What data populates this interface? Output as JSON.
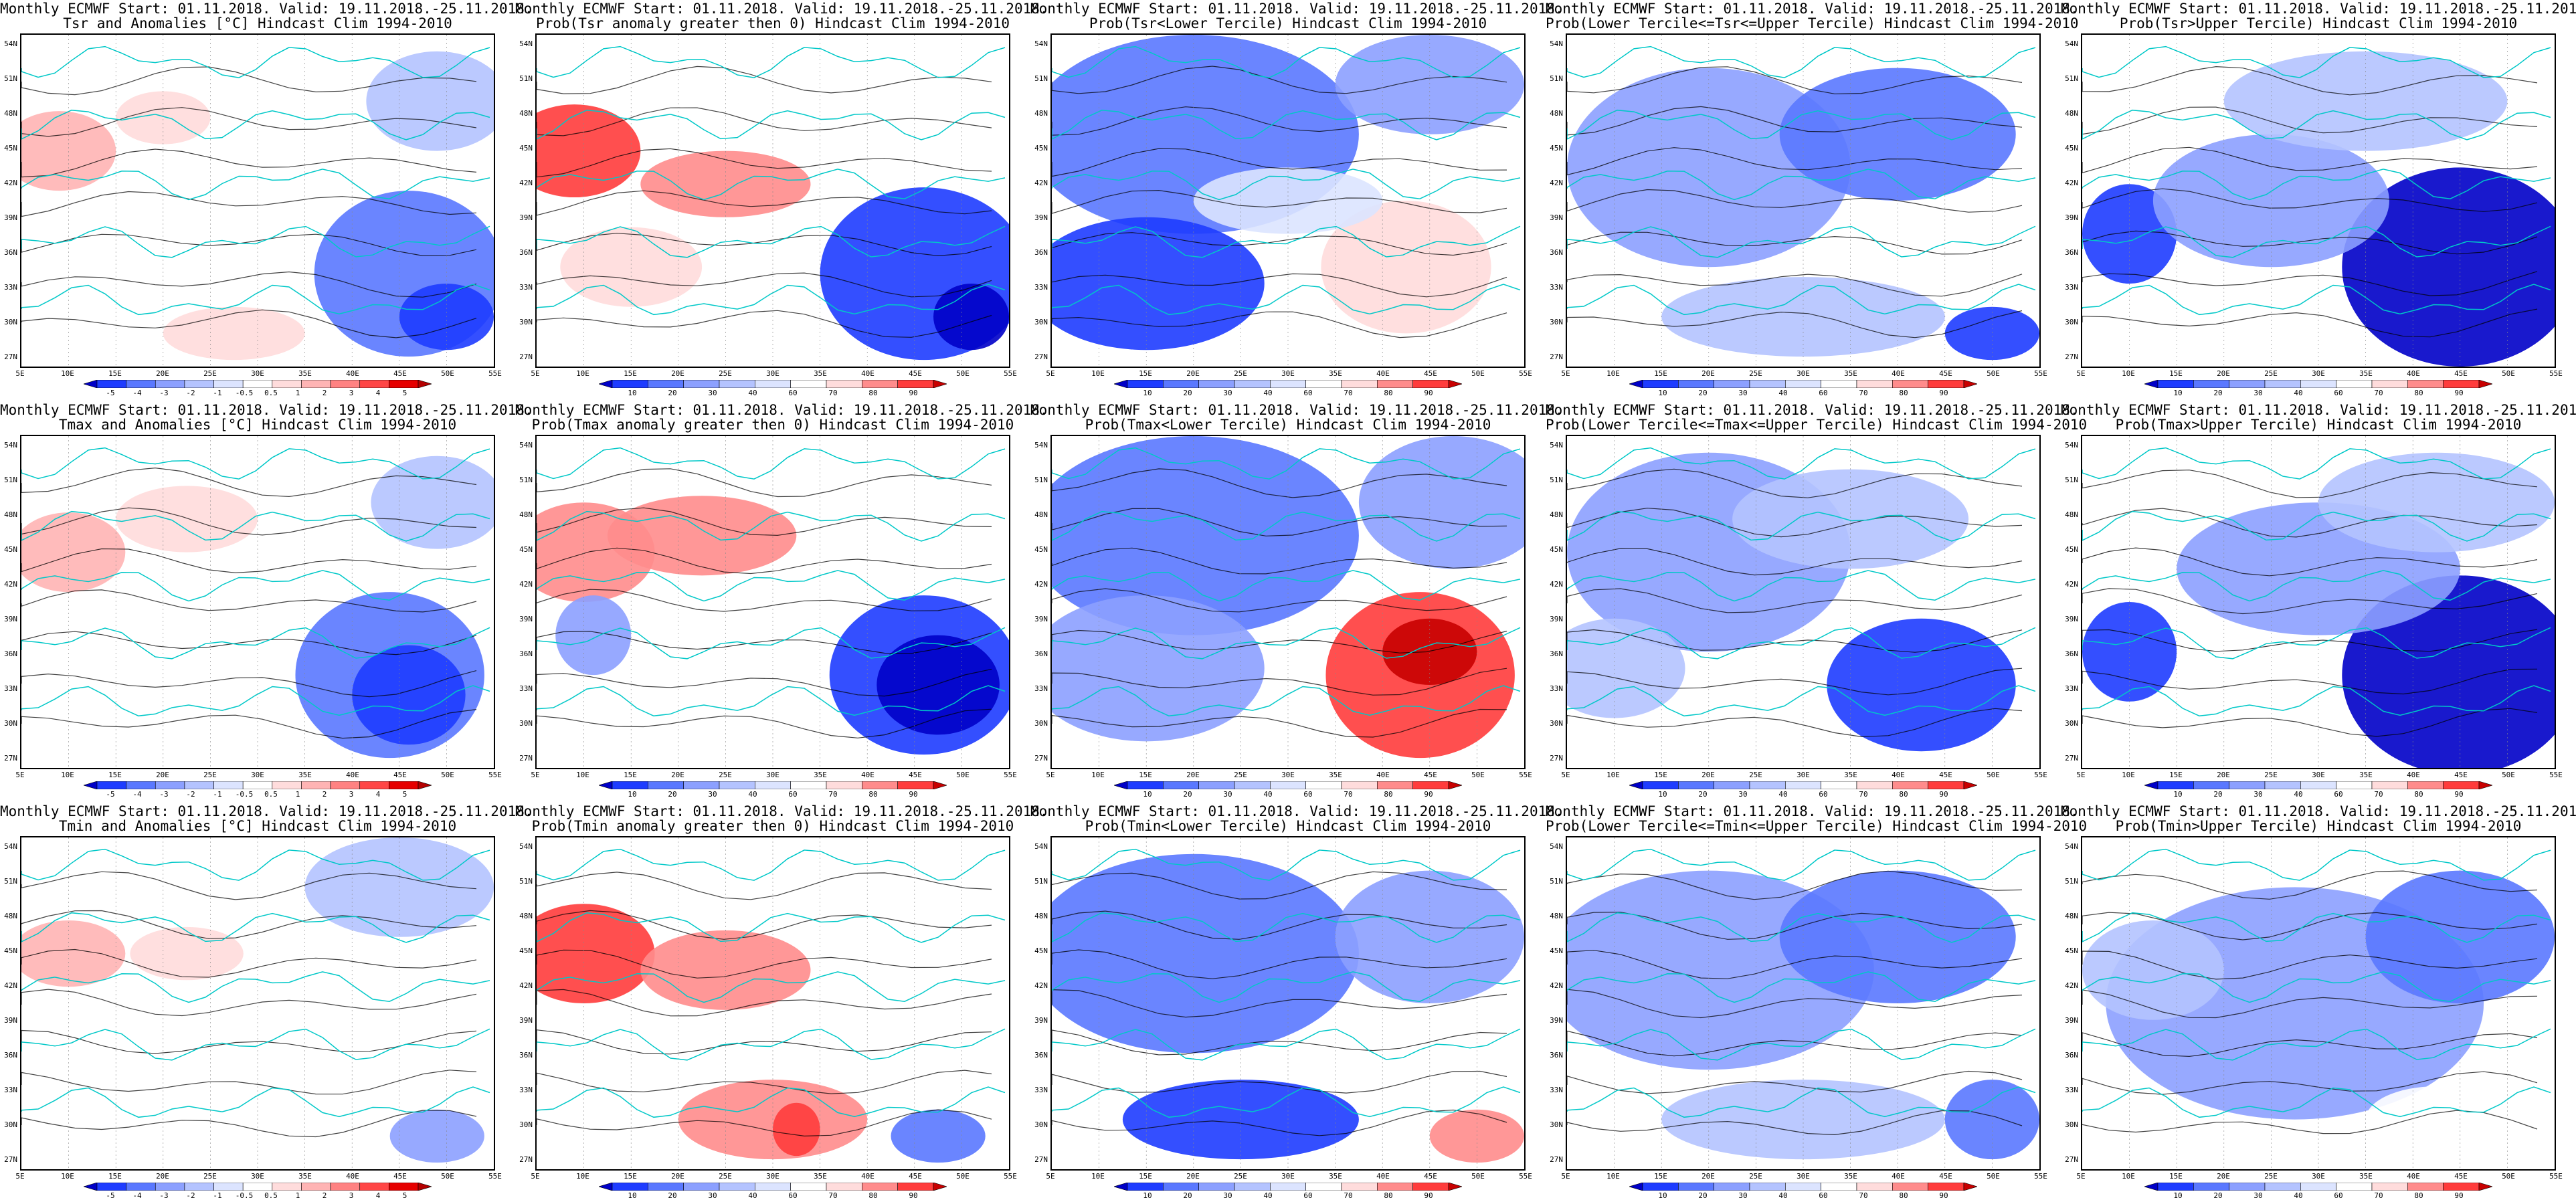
{
  "figure": {
    "common": {
      "lat_labels": [
        "54N",
        "51N",
        "48N",
        "45N",
        "42N",
        "39N",
        "36N",
        "33N",
        "30N",
        "27N"
      ],
      "lon_labels": [
        "5E",
        "10E",
        "15E",
        "20E",
        "25E",
        "30E",
        "35E",
        "40E",
        "45E",
        "50E",
        "55E"
      ],
      "anomaly_ticks": [
        "-5",
        "-4",
        "-3",
        "-2",
        "-1",
        "-0.5",
        "0.5",
        "1",
        "2",
        "3",
        "4",
        "5"
      ],
      "prob_ticks": [
        "10",
        "20",
        "30",
        "40",
        "60",
        "70",
        "80",
        "90"
      ]
    },
    "panels": [
      {
        "line1": "Monthly ECMWF Start: 01.11.2018. Valid: 19.11.2018.-25.11.2018.",
        "line2": "Tsr and Anomalies [°C] Hindcast Clim 1994-2010",
        "scale": "anomaly"
      },
      {
        "line1": "Monthly ECMWF Start: 01.11.2018. Valid: 19.11.2018.-25.11.2018.",
        "line2": "Prob(Tsr anomaly greater then 0) Hindcast Clim 1994-2010",
        "scale": "prob"
      },
      {
        "line1": "Monthly ECMWF Start: 01.11.2018. Valid: 19.11.2018.-25.11.2018.",
        "line2": "Prob(Tsr<Lower Tercile) Hindcast Clim 1994-2010",
        "scale": "prob"
      },
      {
        "line1": "Monthly ECMWF Start: 01.11.2018. Valid: 19.11.2018.-25.11.2018.",
        "line2": "Prob(Lower Tercile<=Tsr<=Upper Tercile) Hindcast Clim 1994-2010",
        "scale": "prob"
      },
      {
        "line1": "Monthly ECMWF Start: 01.11.2018. Valid: 19.11.2018.-25.11.2018.",
        "line2": "Prob(Tsr>Upper Tercile) Hindcast Clim 1994-2010",
        "scale": "prob"
      },
      {
        "line1": "Monthly ECMWF Start: 01.11.2018. Valid: 19.11.2018.-25.11.2018.",
        "line2": "Tmax and Anomalies [°C] Hindcast Clim 1994-2010",
        "scale": "anomaly"
      },
      {
        "line1": "Monthly ECMWF Start: 01.11.2018. Valid: 19.11.2018.-25.11.2018.",
        "line2": "Prob(Tmax anomaly greater then 0) Hindcast Clim 1994-2010",
        "scale": "prob"
      },
      {
        "line1": "Monthly ECMWF Start: 01.11.2018. Valid: 19.11.2018.-25.11.2018.",
        "line2": "Prob(Tmax<Lower Tercile) Hindcast Clim 1994-2010",
        "scale": "prob"
      },
      {
        "line1": "Monthly ECMWF Start: 01.11.2018. Valid: 19.11.2018.-25.11.2018.",
        "line2": "Prob(Lower Tercile<=Tmax<=Upper Tercile) Hindcast Clim 1994-2010",
        "scale": "prob"
      },
      {
        "line1": "Monthly ECMWF Start: 01.11.2018. Valid: 19.11.2018.-25.11.2018.",
        "line2": "Prob(Tmax>Upper Tercile) Hindcast Clim 1994-2010",
        "scale": "prob"
      },
      {
        "line1": "Monthly ECMWF Start: 01.11.2018. Valid: 19.11.2018.-25.11.2018.",
        "line2": "Tmin and Anomalies [°C] Hindcast Clim 1994-2010",
        "scale": "anomaly"
      },
      {
        "line1": "Monthly ECMWF Start: 01.11.2018. Valid: 19.11.2018.-25.11.2018.",
        "line2": "Prob(Tmin anomaly greater then 0) Hindcast Clim 1994-2010",
        "scale": "prob"
      },
      {
        "line1": "Monthly ECMWF Start: 01.11.2018. Valid: 19.11.2018.-25.11.2018.",
        "line2": "Prob(Tmin<Lower Tercile) Hindcast Clim 1994-2010",
        "scale": "prob"
      },
      {
        "line1": "Monthly ECMWF Start: 01.11.2018. Valid: 19.11.2018.-25.11.2018.",
        "line2": "Prob(Lower Tercile<=Tmin<=Upper Tercile) Hindcast Clim 1994-2010",
        "scale": "prob"
      },
      {
        "line1": "Monthly ECMWF Start: 01.11.2018. Valid: 19.11.2018.-25.11.2018.",
        "line2": "Prob(Tmin>Upper Tercile) Hindcast Clim 1994-2010",
        "scale": "prob"
      }
    ],
    "colors": {
      "anomaly_scale": [
        "#0000c8",
        "#1e3cff",
        "#5a78ff",
        "#8ca0ff",
        "#b4c3ff",
        "#dce4ff",
        "#ffffff",
        "#ffdcdc",
        "#ffb4b4",
        "#ff8282",
        "#ff4646",
        "#e60000",
        "#b40000"
      ],
      "prob_scale": [
        "#0000c8",
        "#1e3cff",
        "#5a78ff",
        "#8ca0ff",
        "#b4c3ff",
        "#dce4ff",
        "#ffffff",
        "#ffdcdc",
        "#ff8c8c",
        "#ff3c3c",
        "#c80000"
      ],
      "coastline": "#00c8c8",
      "contour": "#000000"
    }
  }
}
